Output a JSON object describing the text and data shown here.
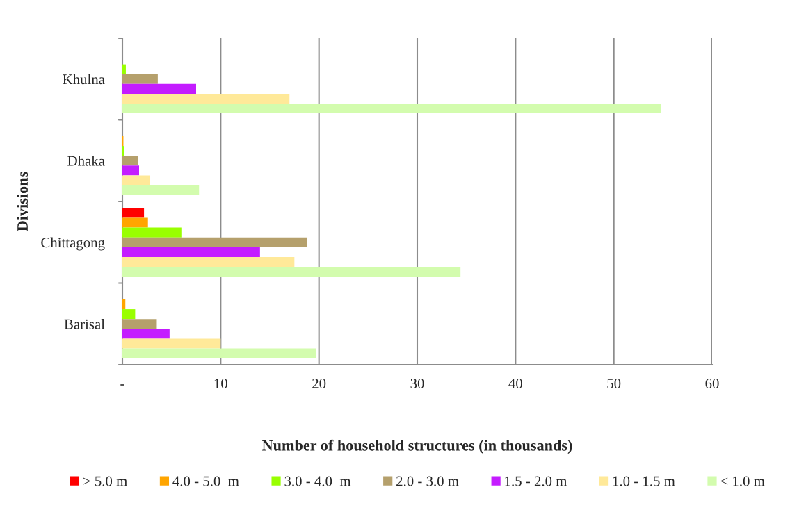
{
  "chart_data": {
    "type": "bar",
    "orientation": "horizontal",
    "categories": [
      "Khulna",
      "Dhaka",
      "Chittagong",
      "Barisal"
    ],
    "xlabel": "Number of household structures (in thousands)",
    "ylabel": "Divisions",
    "series": [
      {
        "name": "> 5.0 m",
        "color": "#ff0000",
        "values": [
          0,
          0,
          2.2,
          0
        ]
      },
      {
        "name": "4.0 - 5.0  m",
        "color": "#ffa500",
        "values": [
          0,
          0.1,
          2.6,
          0.3
        ]
      },
      {
        "name": "3.0 - 4.0  m",
        "color": "#99ff00",
        "values": [
          0.35,
          0.15,
          6.0,
          1.3
        ]
      },
      {
        "name": "2.0 - 3.0 m",
        "color": "#b5a06c",
        "values": [
          3.6,
          1.6,
          18.8,
          3.5
        ]
      },
      {
        "name": "1.5 - 2.0 m",
        "color": "#c41cff",
        "values": [
          7.5,
          1.7,
          14.0,
          4.8
        ]
      },
      {
        "name": "1.0 - 1.5 m",
        "color": "#ffe999",
        "values": [
          17.0,
          2.8,
          17.5,
          10.0
        ]
      },
      {
        "name": "< 1.0 m",
        "color": "#d3fcae",
        "values": [
          54.8,
          7.8,
          34.4,
          19.7
        ]
      }
    ],
    "xlim": [
      0,
      60
    ],
    "xticks": [
      {
        "value": 0,
        "label": "-"
      },
      10,
      20,
      30,
      40,
      50,
      60
    ],
    "grid": "x",
    "legend": "bottom"
  }
}
